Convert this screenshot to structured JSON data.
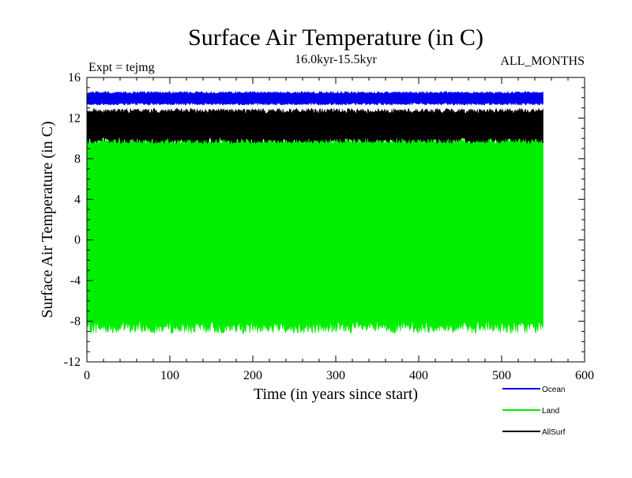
{
  "chart_data": {
    "type": "area",
    "title": "Surface Air Temperature (in C)",
    "subtitle": "16.0kyr-15.5kyr",
    "expt_label": "Expt = tejmg",
    "months_label": "ALL_MONTHS",
    "xlabel": "Time (in years since start)",
    "ylabel": "Surface Air Temperature (in C)",
    "xlim": [
      0,
      600
    ],
    "ylim": [
      -12,
      16
    ],
    "x_ticks": [
      0,
      100,
      200,
      300,
      400,
      500,
      600
    ],
    "x_tick_labels": [
      "0",
      "100",
      "200",
      "300",
      "400",
      "500",
      "600"
    ],
    "y_ticks": [
      -12,
      -8,
      -4,
      0,
      4,
      8,
      12,
      16
    ],
    "y_tick_labels": [
      "-12",
      "-8",
      "-4",
      "0",
      "4",
      "8",
      "12",
      "16"
    ],
    "x_range_data": [
      0,
      550
    ],
    "series": [
      {
        "name": "Land",
        "color": "#00ee00",
        "min": -8.6,
        "max": 9.8,
        "min_noise": 0.6,
        "max_noise": 0.35
      },
      {
        "name": "AllSurf",
        "color": "#000000",
        "min": 9.8,
        "max": 12.7,
        "min_noise": 0.3,
        "max_noise": 0.25
      },
      {
        "name": "Ocean",
        "color": "#0000ee",
        "min": 13.4,
        "max": 14.5,
        "min_noise": 0.12,
        "max_noise": 0.12
      }
    ],
    "legend": [
      {
        "label": "Ocean",
        "color": "#0000ee"
      },
      {
        "label": "Land",
        "color": "#00ee00"
      },
      {
        "label": "AllSurf",
        "color": "#000000"
      }
    ]
  }
}
